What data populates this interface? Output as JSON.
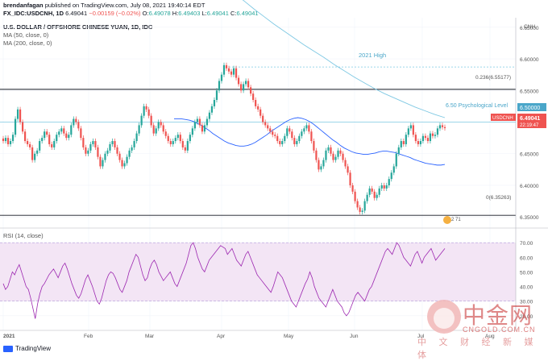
{
  "header": {
    "publisher": "brendanfagan",
    "published_text": "published on TradingView.com, July 08, 2021 19:40:14 EDT",
    "symbol": "FX_IDC:USDCNH, 1D",
    "last": "6.49041",
    "change": "−0.00159 (−0.02%)",
    "o_label": "O:",
    "o": "6.49078",
    "h_label": "H:",
    "h": "6.49403",
    "l_label": "L:",
    "l": "6.49041",
    "c_label": "C:",
    "c": "6.49041"
  },
  "legend": {
    "title": "U.S. DOLLAR / OFFSHORE CHINESE YUAN, 1D, IDC",
    "ma50": "MA (50, close, 0)",
    "ma200": "MA (200, close, 0)"
  },
  "annotations": {
    "high_2021": "2021 High",
    "fib_236": "0.236(6.55177)",
    "fib_0": "0(6.35263)",
    "psych": "6.50 Psychological Level",
    "currency": "CNH",
    "price_tag_symbol": "USDCNH",
    "price_tag_value": "6.49041",
    "price_tag_time": "22:19:47",
    "price_tag_level": "6.50000",
    "event_badge": "2 71"
  },
  "rsi_panel": {
    "title": "RSI (14, close)"
  },
  "branding": {
    "footer": "TradingView"
  },
  "watermark": {
    "text": "中金网",
    "url": "CNGOLD.COM.CN",
    "sub": "中 文 财 经 新 媒 体"
  },
  "colors": {
    "up": "#26a69a",
    "down": "#ef5350",
    "ma50": "#2962ff",
    "ma200": "#7ec8e3",
    "rsi_line": "#9c27b0",
    "rsi_band": "#f3e5f5",
    "hline": "#131722",
    "high_line": "#7ec8e3"
  },
  "chart_data": [
    {
      "type": "candlestick",
      "title": "U.S. DOLLAR / OFFSHORE CHINESE YUAN, 1D, IDC",
      "x_ticks": [
        "2021",
        "Feb",
        "Mar",
        "Apr",
        "May",
        "Jun",
        "Jul",
        "Aug"
      ],
      "y_ticks": [
        "6.65000",
        "6.60000",
        "6.55000",
        "6.50000",
        "6.45000",
        "6.40000",
        "6.35000"
      ],
      "ylim": [
        6.335,
        6.665
      ],
      "horizontal_levels": [
        {
          "label": "2021 High",
          "value": 6.5871
        },
        {
          "label": "0.236(6.55177)",
          "value": 6.55177
        },
        {
          "label": "6.50 Psychological Level",
          "value": 6.5
        },
        {
          "label": "0(6.35263)",
          "value": 6.35263
        }
      ],
      "close": [
        6.47,
        6.475,
        6.465,
        6.47,
        6.48,
        6.505,
        6.52,
        6.5,
        6.485,
        6.47,
        6.465,
        6.46,
        6.44,
        6.45,
        6.455,
        6.47,
        6.475,
        6.485,
        6.48,
        6.465,
        6.46,
        6.47,
        6.48,
        6.485,
        6.49,
        6.482,
        6.475,
        6.48,
        6.495,
        6.505,
        6.5,
        6.49,
        6.475,
        6.46,
        6.45,
        6.455,
        6.465,
        6.47,
        6.46,
        6.445,
        6.43,
        6.44,
        6.45,
        6.455,
        6.465,
        6.47,
        6.46,
        6.45,
        6.44,
        6.43,
        6.435,
        6.445,
        6.455,
        6.46,
        6.47,
        6.482,
        6.495,
        6.51,
        6.525,
        6.52,
        6.51,
        6.495,
        6.482,
        6.49,
        6.5,
        6.495,
        6.485,
        6.478,
        6.47,
        6.465,
        6.47,
        6.475,
        6.48,
        6.47,
        6.46,
        6.455,
        6.47,
        6.48,
        6.49,
        6.5,
        6.505,
        6.495,
        6.485,
        6.495,
        6.505,
        6.515,
        6.525,
        6.535,
        6.55,
        6.565,
        6.575,
        6.59,
        6.585,
        6.58,
        6.575,
        6.585,
        6.57,
        6.56,
        6.55,
        6.56,
        6.565,
        6.555,
        6.545,
        6.535,
        6.525,
        6.52,
        6.51,
        6.5,
        6.495,
        6.49,
        6.485,
        6.48,
        6.478,
        6.47,
        6.465,
        6.47,
        6.478,
        6.49,
        6.485,
        6.475,
        6.465,
        6.47,
        6.478,
        6.485,
        6.49,
        6.495,
        6.485,
        6.47,
        6.455,
        6.44,
        6.425,
        6.43,
        6.44,
        6.455,
        6.46,
        6.45,
        6.44,
        6.445,
        6.455,
        6.45,
        6.44,
        6.43,
        6.42,
        6.4,
        6.39,
        6.375,
        6.365,
        6.358,
        6.36,
        6.375,
        6.385,
        6.395,
        6.39,
        6.38,
        6.385,
        6.395,
        6.4,
        6.395,
        6.4,
        6.41,
        6.42,
        6.43,
        6.45,
        6.46,
        6.47,
        6.465,
        6.48,
        6.49,
        6.495,
        6.48,
        6.47,
        6.465,
        6.47,
        6.478,
        6.475,
        6.47,
        6.482,
        6.478,
        6.48,
        6.49,
        6.495,
        6.492,
        6.49041
      ],
      "ma50": [
        6.505,
        6.505,
        6.505,
        6.504,
        6.503,
        6.501,
        6.498,
        6.495,
        6.491,
        6.487,
        6.482,
        6.478,
        6.474,
        6.47,
        6.467,
        6.465,
        6.463,
        6.462,
        6.462,
        6.463,
        6.465,
        6.468,
        6.472,
        6.476,
        6.48,
        6.485,
        6.489,
        6.493,
        6.497,
        6.501,
        6.504,
        6.506,
        6.507,
        6.506,
        6.504,
        6.501,
        6.497,
        6.492,
        6.487,
        6.482,
        6.477,
        6.472,
        6.468,
        6.463,
        6.459,
        6.456,
        6.453,
        6.451,
        6.45,
        6.449,
        6.449,
        6.45,
        6.451,
        6.453,
        6.454,
        6.454,
        6.453,
        6.452,
        6.45,
        6.448,
        6.446,
        6.444,
        6.441,
        6.439,
        6.437,
        6.435,
        6.434,
        6.433,
        6.432,
        6.432,
        6.433
      ],
      "ma200": [
        6.704,
        6.692,
        6.679,
        6.667,
        6.655,
        6.644,
        6.633,
        6.622,
        6.612,
        6.602,
        6.591,
        6.581,
        6.571,
        6.562,
        6.553,
        6.545,
        6.538,
        6.531,
        6.524,
        6.518,
        6.512,
        6.507
      ],
      "rsi": {
        "label": "RSI (14, close)",
        "ylim": [
          10,
          80
        ],
        "y_ticks": [
          "70.00",
          "60.00",
          "50.00",
          "40.00",
          "30.00",
          "20.00"
        ],
        "band": [
          30,
          70
        ],
        "values": [
          42,
          38,
          40,
          45,
          50,
          48,
          52,
          55,
          50,
          45,
          40,
          38,
          32,
          25,
          18,
          28,
          35,
          40,
          42,
          45,
          48,
          50,
          52,
          49,
          46,
          50,
          54,
          56,
          52,
          47,
          42,
          38,
          34,
          32,
          35,
          40,
          45,
          48,
          44,
          40,
          35,
          30,
          28,
          32,
          38,
          44,
          48,
          50,
          49,
          46,
          42,
          38,
          36,
          40,
          44,
          50,
          54,
          58,
          62,
          60,
          54,
          48,
          44,
          46,
          52,
          56,
          58,
          55,
          50,
          47,
          44,
          46,
          48,
          50,
          46,
          42,
          40,
          44,
          48,
          52,
          56,
          62,
          68,
          70,
          66,
          60,
          56,
          52,
          50,
          54,
          58,
          60,
          62,
          64,
          66,
          68,
          67,
          66,
          62,
          64,
          66,
          62,
          58,
          56,
          54,
          58,
          62,
          64,
          60,
          56,
          52,
          48,
          46,
          44,
          42,
          40,
          38,
          36,
          40,
          45,
          50,
          48,
          46,
          42,
          38,
          34,
          30,
          28,
          26,
          30,
          34,
          38,
          42,
          45,
          50,
          46,
          40,
          36,
          32,
          30,
          28,
          26,
          30,
          34,
          38,
          34,
          30,
          28,
          26,
          22,
          20,
          22,
          26,
          30,
          34,
          36,
          34,
          32,
          30,
          34,
          38,
          40,
          44,
          48,
          52,
          56,
          60,
          64,
          66,
          64,
          62,
          66,
          70,
          68,
          64,
          60,
          58,
          56,
          54,
          58,
          62,
          64,
          60,
          56,
          60,
          62,
          64,
          66,
          62,
          58,
          60,
          62,
          64,
          66
        ]
      }
    }
  ]
}
